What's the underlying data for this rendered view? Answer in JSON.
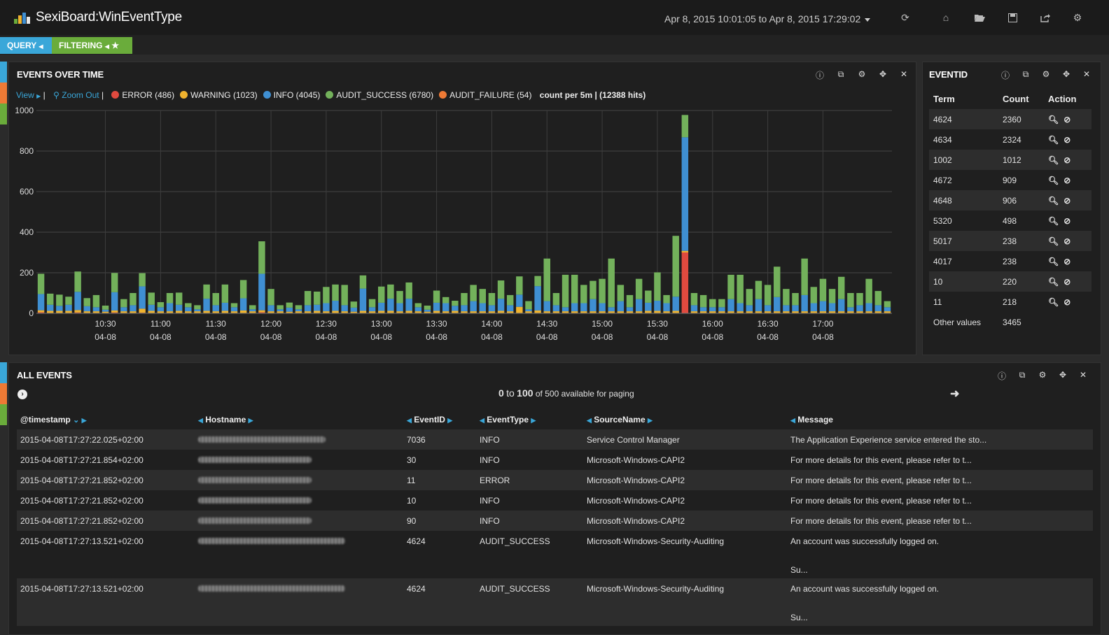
{
  "app": {
    "title": "SexiBoard:WinEventType",
    "time_range": "Apr 8, 2015 10:01:05 to Apr 8, 2015 17:29:02"
  },
  "tabs": [
    {
      "label": "QUERY",
      "color": "#3aa7d9"
    },
    {
      "label": "FILTERING",
      "color": "#6aac3b"
    }
  ],
  "top_icons": [
    "refresh-icon",
    "home-icon",
    "folder-open-icon",
    "save-icon",
    "share-icon",
    "settings-icon"
  ],
  "events_over_time": {
    "title": "EVENTS OVER TIME",
    "view_label": "View",
    "zoom_out_label": "Zoom Out",
    "legend": [
      {
        "label": "ERROR (486)",
        "color": "#e04a3f"
      },
      {
        "label": "WARNING (1023)",
        "color": "#f0b32e"
      },
      {
        "label": "INFO (4045)",
        "color": "#3f8fd2"
      },
      {
        "label": "AUDIT_SUCCESS (6780)",
        "color": "#73b15b"
      },
      {
        "label": "AUDIT_FAILURE (54)",
        "color": "#ee7a35"
      }
    ],
    "summary": "count per 5m | (12388 hits)"
  },
  "chart_data": {
    "type": "bar",
    "stacked": true,
    "title": "EVENTS OVER TIME",
    "ylim": [
      0,
      1000
    ],
    "yticks": [
      "0",
      "200",
      "400",
      "600",
      "800",
      "1000"
    ],
    "xticks": [
      {
        "time": "10:30",
        "date": "04-08"
      },
      {
        "time": "11:00",
        "date": "04-08"
      },
      {
        "time": "11:30",
        "date": "04-08"
      },
      {
        "time": "12:00",
        "date": "04-08"
      },
      {
        "time": "12:30",
        "date": "04-08"
      },
      {
        "time": "13:00",
        "date": "04-08"
      },
      {
        "time": "13:30",
        "date": "04-08"
      },
      {
        "time": "14:00",
        "date": "04-08"
      },
      {
        "time": "14:30",
        "date": "04-08"
      },
      {
        "time": "15:00",
        "date": "04-08"
      },
      {
        "time": "15:30",
        "date": "04-08"
      },
      {
        "time": "16:00",
        "date": "04-08"
      },
      {
        "time": "16:30",
        "date": "04-08"
      },
      {
        "time": "17:00",
        "date": "04-08"
      }
    ],
    "grid": true,
    "series_order": [
      "ERROR",
      "WARNING",
      "INFO",
      "AUDIT_SUCCESS"
    ],
    "colors": [
      "#e04a3f",
      "#f0b32e",
      "#3f8fd2",
      "#73b15b"
    ],
    "bars": [
      [
        5,
        10,
        80,
        100
      ],
      [
        2,
        10,
        30,
        55
      ],
      [
        2,
        10,
        25,
        55
      ],
      [
        2,
        10,
        30,
        40
      ],
      [
        4,
        12,
        90,
        100
      ],
      [
        2,
        8,
        25,
        40
      ],
      [
        2,
        8,
        20,
        60
      ],
      [
        2,
        6,
        10,
        20
      ],
      [
        4,
        10,
        90,
        95
      ],
      [
        2,
        8,
        20,
        40
      ],
      [
        2,
        8,
        30,
        60
      ],
      [
        3,
        20,
        110,
        65
      ],
      [
        2,
        10,
        30,
        60
      ],
      [
        2,
        8,
        20,
        25
      ],
      [
        2,
        8,
        40,
        50
      ],
      [
        2,
        10,
        30,
        60
      ],
      [
        2,
        8,
        20,
        20
      ],
      [
        2,
        8,
        10,
        20
      ],
      [
        2,
        10,
        60,
        70
      ],
      [
        2,
        8,
        30,
        60
      ],
      [
        2,
        10,
        40,
        90
      ],
      [
        2,
        8,
        20,
        20
      ],
      [
        2,
        12,
        60,
        90
      ],
      [
        2,
        8,
        10,
        20
      ],
      [
        5,
        10,
        180,
        160
      ],
      [
        2,
        8,
        30,
        80
      ],
      [
        2,
        8,
        10,
        20
      ],
      [
        2,
        6,
        20,
        25
      ],
      [
        2,
        8,
        10,
        20
      ],
      [
        2,
        8,
        30,
        70
      ],
      [
        2,
        10,
        30,
        65
      ],
      [
        2,
        8,
        40,
        80
      ],
      [
        2,
        10,
        50,
        80
      ],
      [
        2,
        8,
        30,
        100
      ],
      [
        2,
        6,
        20,
        30
      ],
      [
        2,
        10,
        110,
        65
      ],
      [
        2,
        8,
        20,
        40
      ],
      [
        2,
        10,
        40,
        80
      ],
      [
        2,
        10,
        60,
        70
      ],
      [
        2,
        8,
        40,
        60
      ],
      [
        2,
        10,
        60,
        80
      ],
      [
        2,
        8,
        20,
        20
      ],
      [
        2,
        6,
        10,
        20
      ],
      [
        2,
        10,
        40,
        60
      ],
      [
        2,
        8,
        40,
        30
      ],
      [
        2,
        10,
        25,
        25
      ],
      [
        2,
        8,
        30,
        60
      ],
      [
        2,
        8,
        50,
        80
      ],
      [
        2,
        8,
        40,
        70
      ],
      [
        2,
        8,
        30,
        60
      ],
      [
        2,
        10,
        60,
        90
      ],
      [
        2,
        8,
        30,
        50
      ],
      [
        2,
        30,
        60,
        90
      ],
      [
        2,
        8,
        10,
        40
      ],
      [
        2,
        12,
        120,
        50
      ],
      [
        2,
        8,
        50,
        210
      ],
      [
        2,
        8,
        30,
        60
      ],
      [
        2,
        8,
        20,
        160
      ],
      [
        2,
        8,
        40,
        140
      ],
      [
        2,
        8,
        40,
        90
      ],
      [
        2,
        8,
        60,
        90
      ],
      [
        2,
        8,
        40,
        120
      ],
      [
        2,
        8,
        20,
        240
      ],
      [
        2,
        8,
        50,
        80
      ],
      [
        2,
        8,
        20,
        60
      ],
      [
        2,
        8,
        60,
        100
      ],
      [
        2,
        10,
        40,
        60
      ],
      [
        2,
        10,
        50,
        140
      ],
      [
        2,
        8,
        40,
        40
      ],
      [
        2,
        10,
        70,
        300
      ],
      [
        300,
        8,
        560,
        110
      ],
      [
        2,
        8,
        30,
        60
      ],
      [
        2,
        8,
        20,
        60
      ],
      [
        2,
        8,
        20,
        40
      ],
      [
        2,
        8,
        20,
        40
      ],
      [
        2,
        8,
        60,
        120
      ],
      [
        2,
        8,
        40,
        140
      ],
      [
        2,
        8,
        30,
        80
      ],
      [
        2,
        8,
        60,
        90
      ],
      [
        2,
        8,
        30,
        100
      ],
      [
        2,
        8,
        70,
        150
      ],
      [
        2,
        8,
        30,
        80
      ],
      [
        2,
        8,
        30,
        60
      ],
      [
        2,
        8,
        80,
        180
      ],
      [
        2,
        8,
        40,
        80
      ],
      [
        2,
        8,
        50,
        110
      ],
      [
        2,
        8,
        40,
        70
      ],
      [
        2,
        8,
        60,
        110
      ],
      [
        2,
        8,
        20,
        70
      ],
      [
        2,
        8,
        30,
        60
      ],
      [
        2,
        8,
        40,
        120
      ],
      [
        2,
        8,
        30,
        70
      ],
      [
        2,
        8,
        20,
        30
      ]
    ]
  },
  "eventid_panel": {
    "title": "EVENTID",
    "headers": [
      "Term",
      "Count",
      "Action"
    ],
    "rows": [
      {
        "term": "4624",
        "count": "2360"
      },
      {
        "term": "4634",
        "count": "2324"
      },
      {
        "term": "1002",
        "count": "1012"
      },
      {
        "term": "4672",
        "count": "909"
      },
      {
        "term": "4648",
        "count": "906"
      },
      {
        "term": "5320",
        "count": "498"
      },
      {
        "term": "5017",
        "count": "238"
      },
      {
        "term": "4017",
        "count": "238"
      },
      {
        "term": "10",
        "count": "220"
      },
      {
        "term": "11",
        "count": "218"
      }
    ],
    "other_label": "Other values",
    "other_count": "3465"
  },
  "all_events": {
    "title": "ALL EVENTS",
    "paging_from": "0",
    "paging_to_word": "to",
    "paging_to": "100",
    "paging_rest": "of 500 available for paging",
    "columns": [
      "@timestamp",
      "Hostname",
      "EventID",
      "EventType",
      "SourceName",
      "Message"
    ],
    "rows": [
      {
        "timestamp": "2015-04-08T17:27:22.025+02:00",
        "hostname_blur": 182,
        "eventid": "7036",
        "eventtype": "INFO",
        "source": "Service Control Manager",
        "message": "The Application Experience service entered the sto...",
        "message2": ""
      },
      {
        "timestamp": "2015-04-08T17:27:21.854+02:00",
        "hostname_blur": 162,
        "eventid": "30",
        "eventtype": "INFO",
        "source": "Microsoft-Windows-CAPI2",
        "message": "For more details for this event, please refer to t...",
        "message2": ""
      },
      {
        "timestamp": "2015-04-08T17:27:21.852+02:00",
        "hostname_blur": 162,
        "eventid": "11",
        "eventtype": "ERROR",
        "source": "Microsoft-Windows-CAPI2",
        "message": "For more details for this event, please refer to t...",
        "message2": ""
      },
      {
        "timestamp": "2015-04-08T17:27:21.852+02:00",
        "hostname_blur": 162,
        "eventid": "10",
        "eventtype": "INFO",
        "source": "Microsoft-Windows-CAPI2",
        "message": "For more details for this event, please refer to t...",
        "message2": ""
      },
      {
        "timestamp": "2015-04-08T17:27:21.852+02:00",
        "hostname_blur": 162,
        "eventid": "90",
        "eventtype": "INFO",
        "source": "Microsoft-Windows-CAPI2",
        "message": "For more details for this event, please refer to t...",
        "message2": ""
      },
      {
        "timestamp": "2015-04-08T17:27:13.521+02:00",
        "hostname_blur": 210,
        "eventid": "4624",
        "eventtype": "AUDIT_SUCCESS",
        "source": "Microsoft-Windows-Security-Auditing",
        "message": "An account was successfully logged on.",
        "message2": "Su..."
      },
      {
        "timestamp": "2015-04-08T17:27:13.521+02:00",
        "hostname_blur": 210,
        "eventid": "4624",
        "eventtype": "AUDIT_SUCCESS",
        "source": "Microsoft-Windows-Security-Auditing",
        "message": "An account was successfully logged on.",
        "message2": "Su..."
      }
    ]
  }
}
